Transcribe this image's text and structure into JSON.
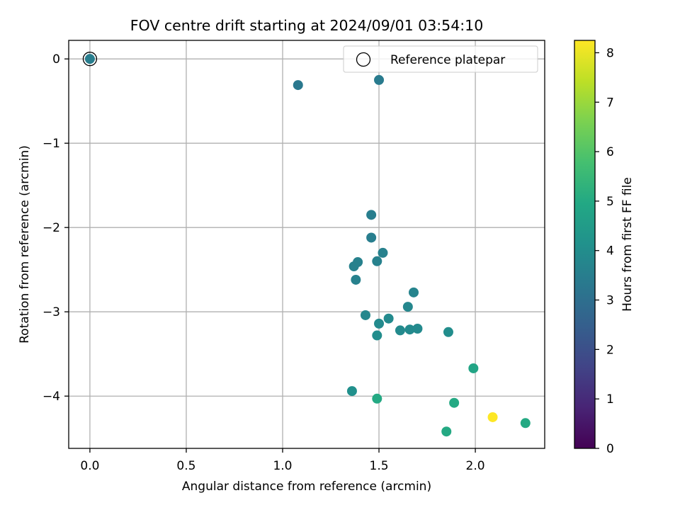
{
  "chart_data": {
    "type": "scatter",
    "title": "FOV centre drift starting at 2024/09/01 03:54:10",
    "xlabel": "Angular distance from reference (arcmin)",
    "ylabel": "Rotation from reference (arcmin)",
    "xlim": [
      -0.11,
      2.36
    ],
    "ylim": [
      -4.62,
      0.22
    ],
    "xticks": [
      0.0,
      0.5,
      1.0,
      1.5,
      2.0
    ],
    "xtick_labels": [
      "0.0",
      "0.5",
      "1.0",
      "1.5",
      "2.0"
    ],
    "yticks": [
      0,
      -1,
      -2,
      -3,
      -4
    ],
    "ytick_labels": [
      "0",
      "−1",
      "−2",
      "−3",
      "−4"
    ],
    "grid": true,
    "legend": {
      "position": "top-right",
      "entries": [
        "Reference platepar"
      ]
    },
    "reference_point": {
      "x": 0.0,
      "y": 0.0
    },
    "colorbar": {
      "label": "Hours from first FF file",
      "range": [
        0,
        8.25
      ],
      "colormap": "viridis",
      "ticks": [
        0,
        1,
        2,
        3,
        4,
        5,
        6,
        7,
        8
      ],
      "tick_labels": [
        "0",
        "1",
        "2",
        "3",
        "4",
        "5",
        "6",
        "7",
        "8"
      ]
    },
    "points": [
      {
        "x": 0.0,
        "y": 0.0,
        "hours": 3.5
      },
      {
        "x": 1.08,
        "y": -0.31,
        "hours": 3.3
      },
      {
        "x": 1.5,
        "y": -0.25,
        "hours": 3.4
      },
      {
        "x": 1.46,
        "y": -1.85,
        "hours": 3.5
      },
      {
        "x": 1.46,
        "y": -2.12,
        "hours": 3.5
      },
      {
        "x": 1.52,
        "y": -2.3,
        "hours": 3.6
      },
      {
        "x": 1.39,
        "y": -2.41,
        "hours": 3.6
      },
      {
        "x": 1.37,
        "y": -2.46,
        "hours": 3.6
      },
      {
        "x": 1.49,
        "y": -2.4,
        "hours": 3.6
      },
      {
        "x": 1.38,
        "y": -2.62,
        "hours": 3.6
      },
      {
        "x": 1.68,
        "y": -2.77,
        "hours": 3.7
      },
      {
        "x": 1.65,
        "y": -2.94,
        "hours": 3.8
      },
      {
        "x": 1.43,
        "y": -3.04,
        "hours": 3.8
      },
      {
        "x": 1.55,
        "y": -3.08,
        "hours": 3.9
      },
      {
        "x": 1.5,
        "y": -3.14,
        "hours": 3.9
      },
      {
        "x": 1.61,
        "y": -3.22,
        "hours": 3.9
      },
      {
        "x": 1.66,
        "y": -3.21,
        "hours": 3.9
      },
      {
        "x": 1.7,
        "y": -3.2,
        "hours": 3.9
      },
      {
        "x": 1.86,
        "y": -3.24,
        "hours": 4.0
      },
      {
        "x": 1.49,
        "y": -3.28,
        "hours": 4.0
      },
      {
        "x": 1.99,
        "y": -3.67,
        "hours": 4.8
      },
      {
        "x": 1.36,
        "y": -3.94,
        "hours": 4.1
      },
      {
        "x": 1.49,
        "y": -4.03,
        "hours": 5.0
      },
      {
        "x": 1.89,
        "y": -4.08,
        "hours": 5.0
      },
      {
        "x": 2.09,
        "y": -4.25,
        "hours": 8.25
      },
      {
        "x": 2.26,
        "y": -4.32,
        "hours": 5.0
      },
      {
        "x": 1.85,
        "y": -4.42,
        "hours": 5.0
      }
    ]
  }
}
